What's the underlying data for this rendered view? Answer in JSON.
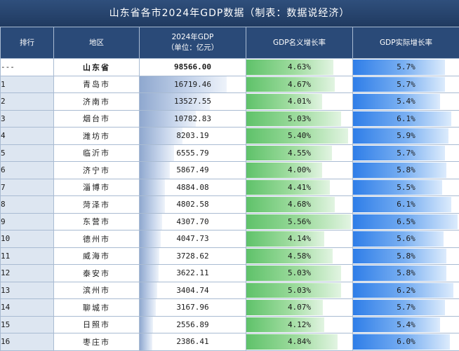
{
  "title": "山东省各市2024年GDP数据（制表：数据说经济）",
  "headers": {
    "rank": "排行",
    "region": "地区",
    "gdp_line1": "2024年GDP",
    "gdp_line2": "（单位：亿元）",
    "nominal": "GDP名义增长率",
    "real": "GDP实际增长率"
  },
  "scale": {
    "gdp_max": 16719.46,
    "nominal_max": 5.56,
    "real_max": 6.5
  },
  "rows": [
    {
      "rank": "---",
      "region": "山东省",
      "gdp": "98566.00",
      "gdp_value": 98566.0,
      "nominal": "4.63%",
      "nominal_value": 4.63,
      "real": "5.7%",
      "real_value": 5.7
    },
    {
      "rank": "1",
      "region": "青岛市",
      "gdp": "16719.46",
      "gdp_value": 16719.46,
      "nominal": "4.67%",
      "nominal_value": 4.67,
      "real": "5.7%",
      "real_value": 5.7
    },
    {
      "rank": "2",
      "region": "济南市",
      "gdp": "13527.55",
      "gdp_value": 13527.55,
      "nominal": "4.01%",
      "nominal_value": 4.01,
      "real": "5.4%",
      "real_value": 5.4
    },
    {
      "rank": "3",
      "region": "烟台市",
      "gdp": "10782.83",
      "gdp_value": 10782.83,
      "nominal": "5.03%",
      "nominal_value": 5.03,
      "real": "6.1%",
      "real_value": 6.1
    },
    {
      "rank": "4",
      "region": "潍坊市",
      "gdp": "8203.19",
      "gdp_value": 8203.19,
      "nominal": "5.40%",
      "nominal_value": 5.4,
      "real": "5.9%",
      "real_value": 5.9
    },
    {
      "rank": "5",
      "region": "临沂市",
      "gdp": "6555.79",
      "gdp_value": 6555.79,
      "nominal": "4.55%",
      "nominal_value": 4.55,
      "real": "5.7%",
      "real_value": 5.7
    },
    {
      "rank": "6",
      "region": "济宁市",
      "gdp": "5867.49",
      "gdp_value": 5867.49,
      "nominal": "4.00%",
      "nominal_value": 4.0,
      "real": "5.8%",
      "real_value": 5.8
    },
    {
      "rank": "7",
      "region": "淄博市",
      "gdp": "4884.08",
      "gdp_value": 4884.08,
      "nominal": "4.41%",
      "nominal_value": 4.41,
      "real": "5.5%",
      "real_value": 5.5
    },
    {
      "rank": "8",
      "region": "菏泽市",
      "gdp": "4802.58",
      "gdp_value": 4802.58,
      "nominal": "4.68%",
      "nominal_value": 4.68,
      "real": "6.1%",
      "real_value": 6.1
    },
    {
      "rank": "9",
      "region": "东营市",
      "gdp": "4307.70",
      "gdp_value": 4307.7,
      "nominal": "5.56%",
      "nominal_value": 5.56,
      "real": "6.5%",
      "real_value": 6.5
    },
    {
      "rank": "10",
      "region": "德州市",
      "gdp": "4047.73",
      "gdp_value": 4047.73,
      "nominal": "4.14%",
      "nominal_value": 4.14,
      "real": "5.6%",
      "real_value": 5.6
    },
    {
      "rank": "11",
      "region": "威海市",
      "gdp": "3728.62",
      "gdp_value": 3728.62,
      "nominal": "4.58%",
      "nominal_value": 4.58,
      "real": "5.8%",
      "real_value": 5.8
    },
    {
      "rank": "12",
      "region": "泰安市",
      "gdp": "3622.11",
      "gdp_value": 3622.11,
      "nominal": "5.03%",
      "nominal_value": 5.03,
      "real": "5.8%",
      "real_value": 5.8
    },
    {
      "rank": "13",
      "region": "滨州市",
      "gdp": "3404.74",
      "gdp_value": 3404.74,
      "nominal": "5.03%",
      "nominal_value": 5.03,
      "real": "6.2%",
      "real_value": 6.2
    },
    {
      "rank": "14",
      "region": "聊城市",
      "gdp": "3167.96",
      "gdp_value": 3167.96,
      "nominal": "4.07%",
      "nominal_value": 4.07,
      "real": "5.7%",
      "real_value": 5.7
    },
    {
      "rank": "15",
      "region": "日照市",
      "gdp": "2556.89",
      "gdp_value": 2556.89,
      "nominal": "4.12%",
      "nominal_value": 4.12,
      "real": "5.4%",
      "real_value": 5.4
    },
    {
      "rank": "16",
      "region": "枣庄市",
      "gdp": "2386.41",
      "gdp_value": 2386.41,
      "nominal": "4.84%",
      "nominal_value": 4.84,
      "real": "6.0%",
      "real_value": 6.0
    }
  ]
}
